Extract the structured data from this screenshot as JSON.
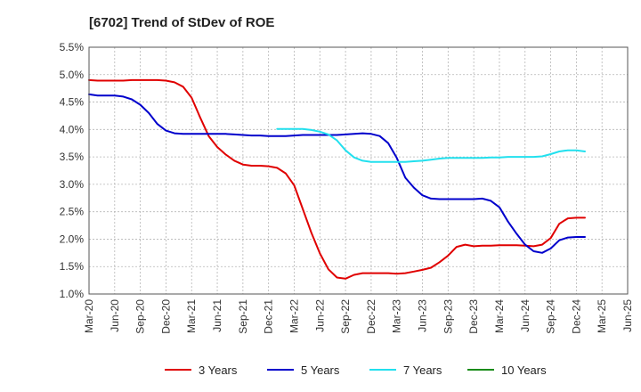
{
  "chart_data": {
    "type": "line",
    "title": "[6702]  Trend of StDev of ROE",
    "xlabel": "",
    "ylabel": "",
    "x_tick_labels": [
      "Mar-20",
      "Jun-20",
      "Sep-20",
      "Dec-20",
      "Mar-21",
      "Jun-21",
      "Sep-21",
      "Dec-21",
      "Mar-22",
      "Jun-22",
      "Sep-22",
      "Dec-22",
      "Mar-23",
      "Jun-23",
      "Sep-23",
      "Dec-23",
      "Mar-24",
      "Jun-24",
      "Sep-24",
      "Dec-24",
      "Mar-25",
      "Jun-25"
    ],
    "y_tick_labels": [
      "1.0%",
      "1.5%",
      "2.0%",
      "2.5%",
      "3.0%",
      "3.5%",
      "4.0%",
      "4.5%",
      "5.0%",
      "5.5%"
    ],
    "ylim": [
      1.0,
      5.5
    ],
    "grid": true,
    "legend_position": "bottom",
    "series": [
      {
        "name": "3 Years",
        "color": "#e00000",
        "values": [
          4.9,
          4.89,
          4.89,
          4.89,
          4.89,
          4.9,
          4.9,
          4.9,
          4.9,
          4.89,
          4.86,
          4.78,
          4.58,
          4.22,
          3.88,
          3.68,
          3.54,
          3.43,
          3.36,
          3.34,
          3.34,
          3.33,
          3.3,
          3.2,
          2.98,
          2.55,
          2.12,
          1.74,
          1.45,
          1.3,
          1.28,
          1.35,
          1.38,
          1.38,
          1.38,
          1.38,
          1.37,
          1.38,
          1.41,
          1.44,
          1.48,
          1.58,
          1.7,
          1.86,
          1.9,
          1.87,
          1.88,
          1.88,
          1.89,
          1.89,
          1.89,
          1.88,
          1.87,
          1.9,
          2.02,
          2.28,
          2.38,
          2.39,
          2.39
        ]
      },
      {
        "name": "5 Years",
        "color": "#0000cc",
        "values": [
          4.64,
          4.62,
          4.62,
          4.62,
          4.6,
          4.55,
          4.45,
          4.3,
          4.1,
          3.98,
          3.93,
          3.92,
          3.92,
          3.92,
          3.92,
          3.92,
          3.92,
          3.91,
          3.9,
          3.89,
          3.89,
          3.88,
          3.88,
          3.88,
          3.89,
          3.9,
          3.9,
          3.9,
          3.9,
          3.9,
          3.91,
          3.92,
          3.93,
          3.92,
          3.88,
          3.75,
          3.48,
          3.12,
          2.94,
          2.8,
          2.74,
          2.73,
          2.73,
          2.73,
          2.73,
          2.73,
          2.74,
          2.7,
          2.58,
          2.32,
          2.1,
          1.9,
          1.78,
          1.75,
          1.83,
          1.98,
          2.03,
          2.04,
          2.04
        ]
      },
      {
        "name": "7 Years",
        "color": "#22e0ee",
        "values": [
          null,
          null,
          null,
          null,
          null,
          null,
          null,
          null,
          null,
          null,
          null,
          null,
          null,
          null,
          null,
          null,
          null,
          null,
          null,
          null,
          null,
          null,
          4.01,
          4.01,
          4.01,
          4.01,
          3.99,
          3.96,
          3.91,
          3.8,
          3.62,
          3.49,
          3.43,
          3.41,
          3.41,
          3.41,
          3.41,
          3.41,
          3.42,
          3.43,
          3.45,
          3.47,
          3.48,
          3.48,
          3.48,
          3.48,
          3.48,
          3.49,
          3.49,
          3.5,
          3.5,
          3.5,
          3.5,
          3.51,
          3.55,
          3.6,
          3.62,
          3.62,
          3.6
        ]
      },
      {
        "name": "10 Years",
        "color": "#1a8c1a",
        "values": []
      }
    ]
  }
}
